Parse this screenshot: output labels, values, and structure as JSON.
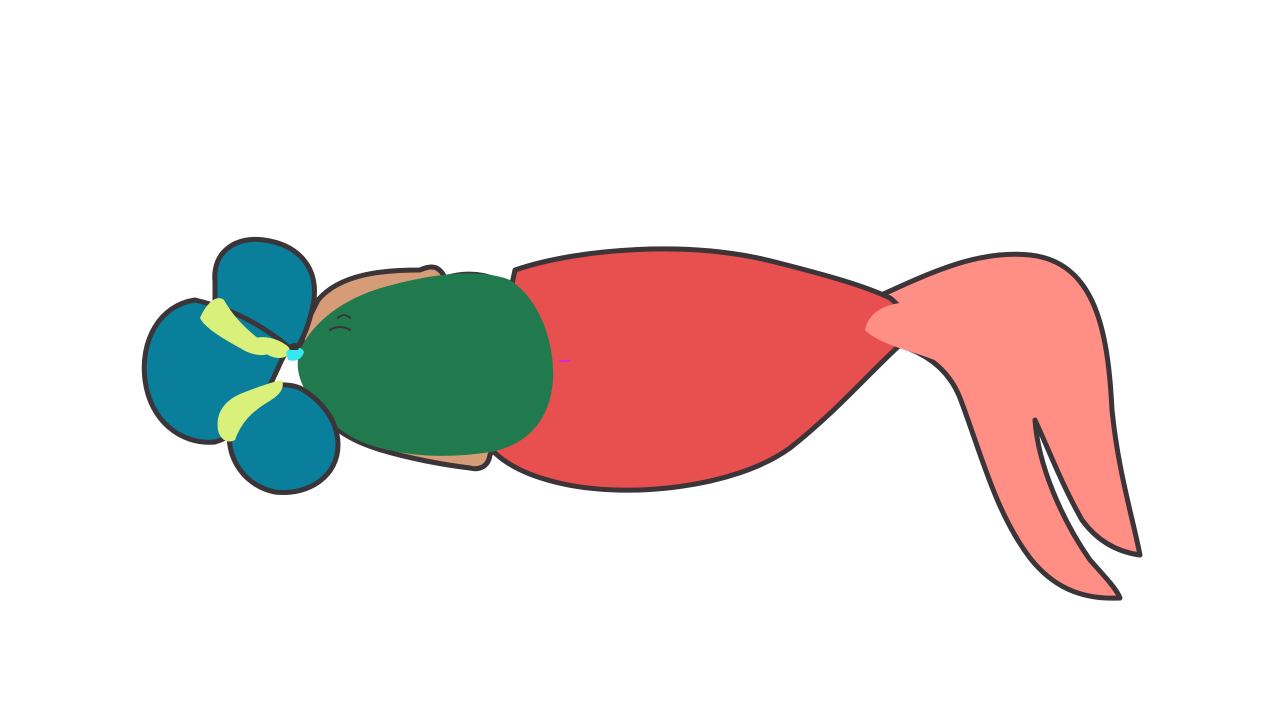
{
  "scene": {
    "subject": "mermaid-lying-down",
    "colors": {
      "background": "#ffffff",
      "outline": "#3b3438",
      "hair": "#0a7f9c",
      "hair_tie": "#d9f07a",
      "skin": "#d69c77",
      "top": "#217a4e",
      "tail": "#e84f4f",
      "fin": "#ff8f84",
      "accent_cyan": "#36e6f0",
      "accent_magenta": "#d12ad1"
    }
  }
}
